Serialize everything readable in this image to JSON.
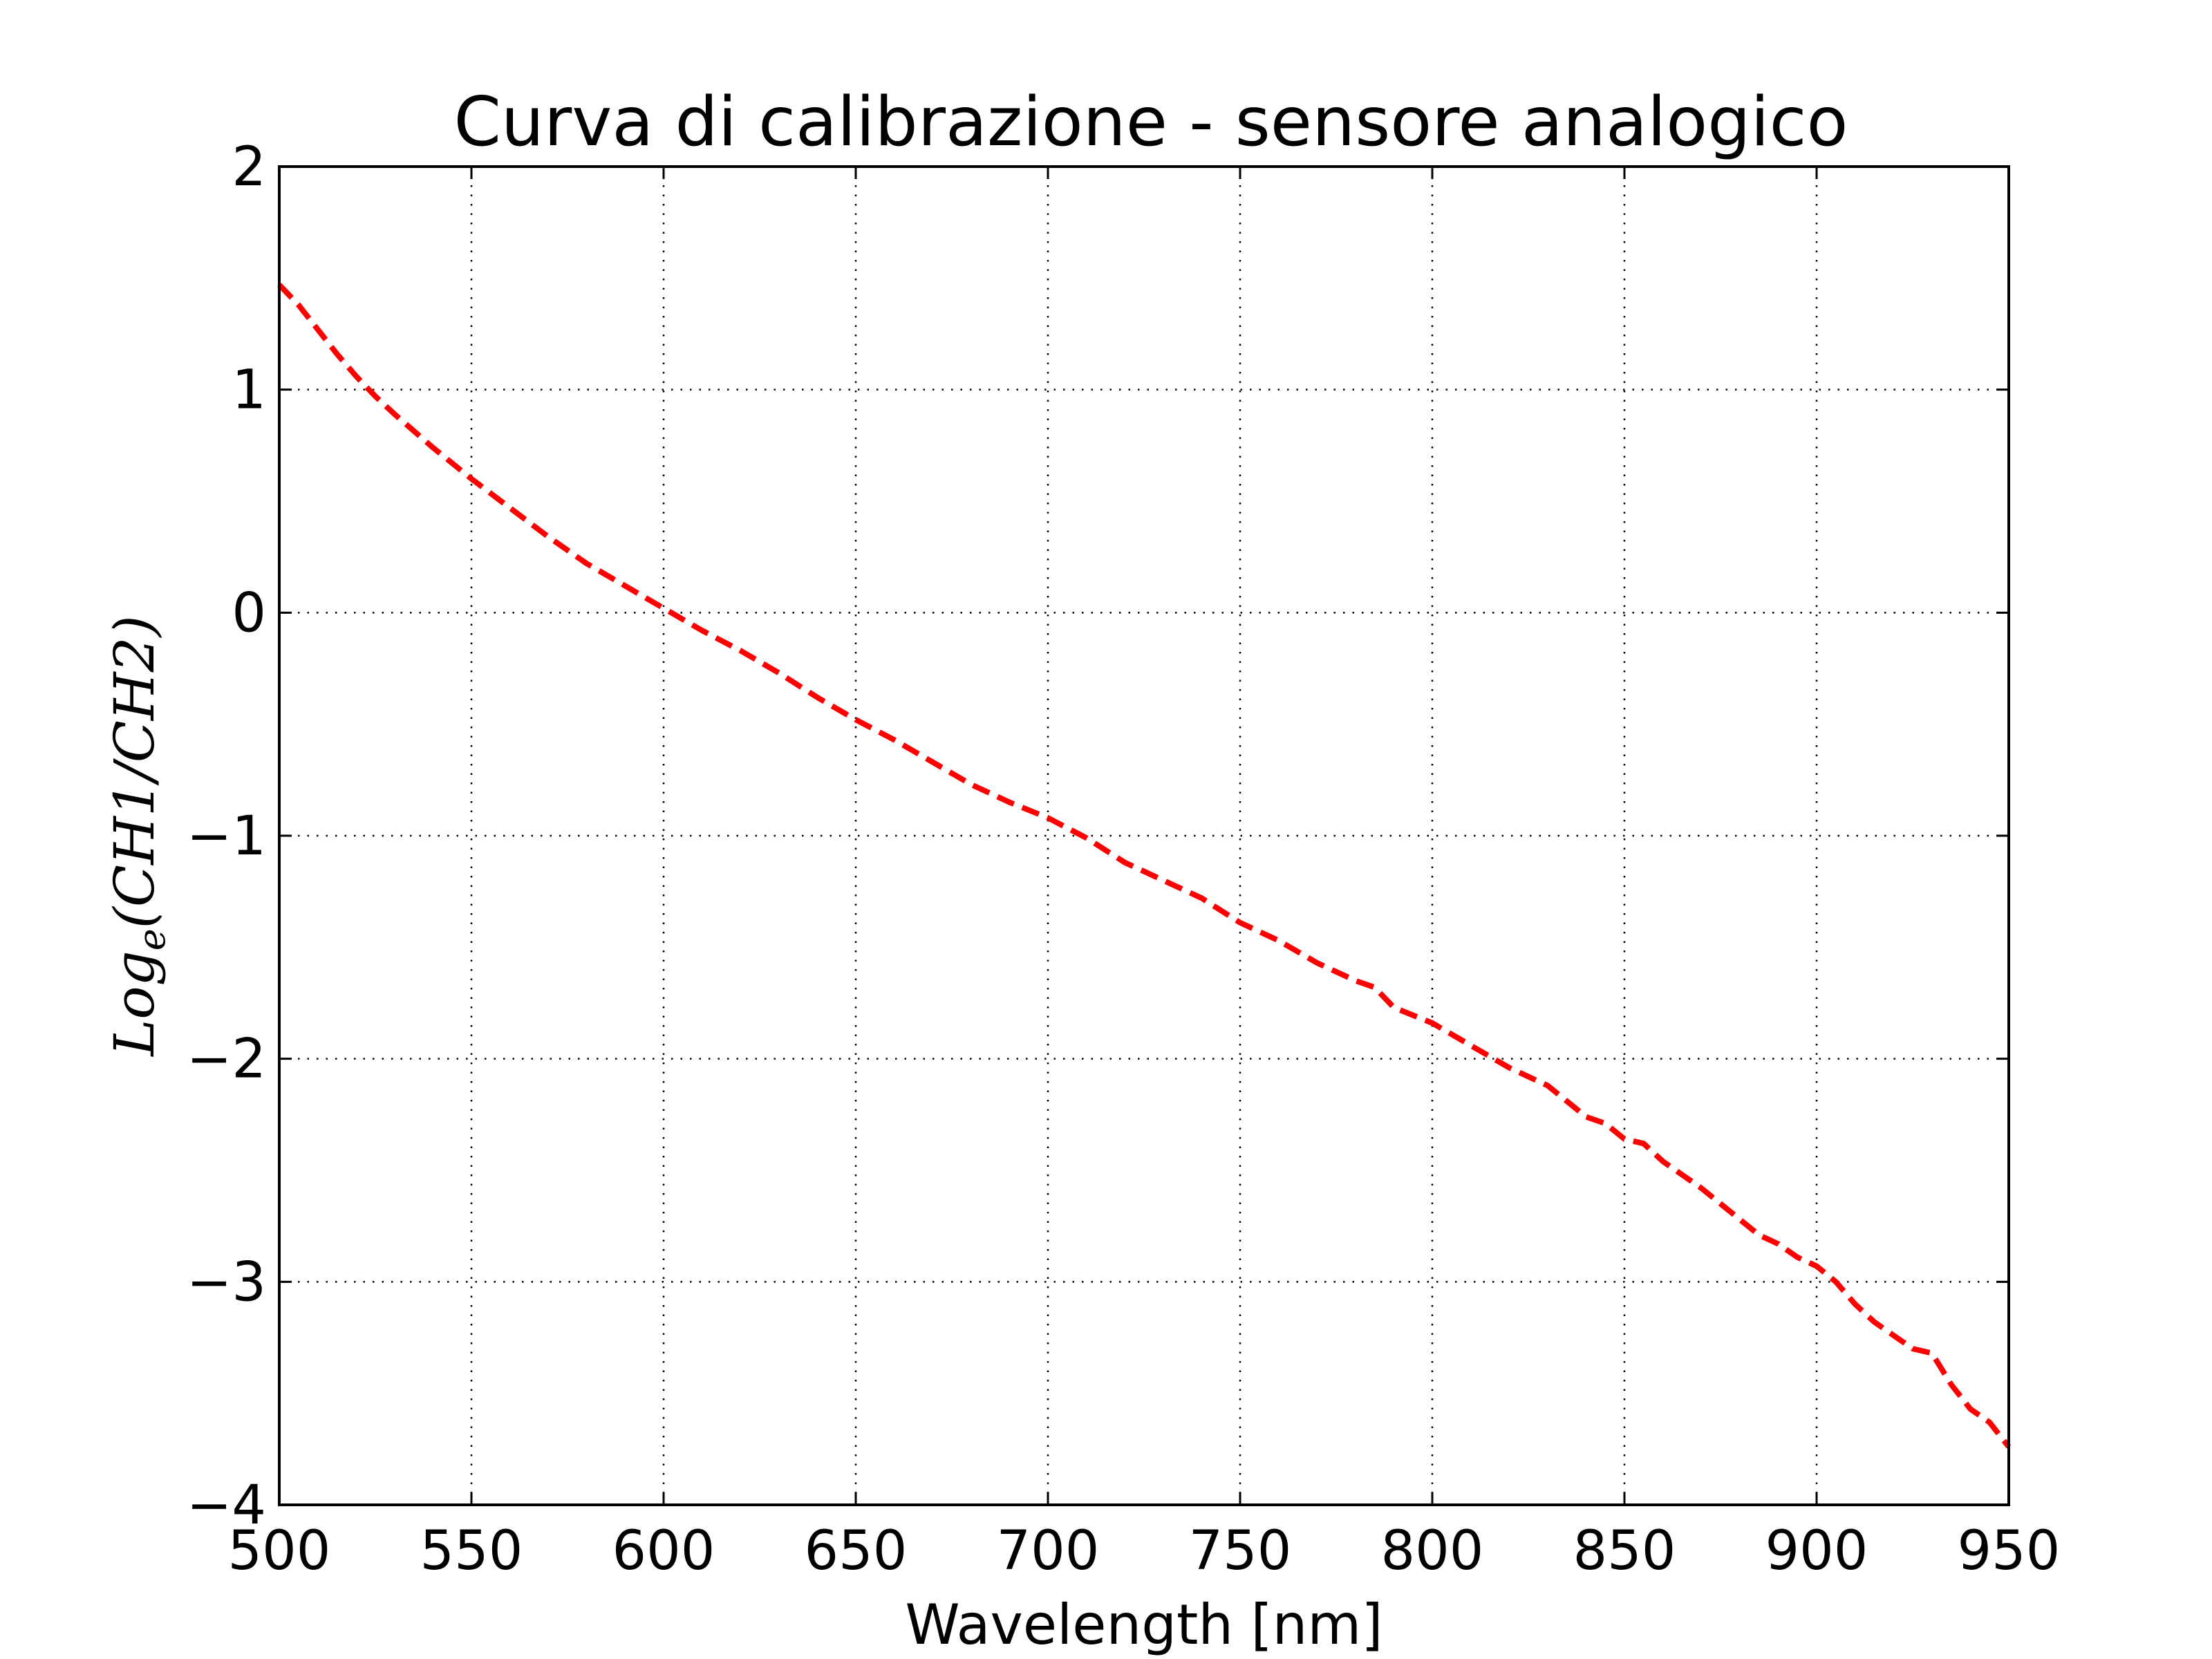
{
  "chart_data": {
    "type": "line",
    "title": "Curva di calibrazione - sensore analogico",
    "xlabel": "Wavelength [nm]",
    "ylabel": {
      "base": "Log",
      "subscript": "e",
      "rest": "(CH1/CH2)"
    },
    "xlim": [
      500,
      950
    ],
    "ylim": [
      -4,
      2
    ],
    "xticks": [
      500,
      550,
      600,
      650,
      700,
      750,
      800,
      850,
      900,
      950
    ],
    "yticks": [
      2,
      1,
      0,
      -1,
      -2,
      -3,
      -4
    ],
    "ytick_labels": [
      "2",
      "1",
      "0",
      "−1",
      "−2",
      "−3",
      "−4"
    ],
    "grid": true,
    "grid_style": "dotted",
    "series": [
      {
        "line_style": "dashed",
        "color": "#ff0000",
        "x": [
          500,
          505,
          510,
          515,
          520,
          525,
          530,
          540,
          550,
          560,
          570,
          580,
          590,
          600,
          610,
          620,
          630,
          640,
          650,
          660,
          670,
          680,
          690,
          700,
          710,
          720,
          730,
          740,
          750,
          760,
          770,
          780,
          785,
          790,
          800,
          810,
          820,
          830,
          840,
          845,
          850,
          855,
          860,
          870,
          880,
          885,
          890,
          895,
          900,
          905,
          910,
          915,
          920,
          925,
          930,
          935,
          940,
          945,
          950
        ],
        "y": [
          1.47,
          1.38,
          1.27,
          1.16,
          1.06,
          0.97,
          0.89,
          0.74,
          0.6,
          0.47,
          0.34,
          0.22,
          0.12,
          0.02,
          -0.08,
          -0.17,
          -0.27,
          -0.38,
          -0.48,
          -0.57,
          -0.67,
          -0.77,
          -0.85,
          -0.92,
          -1.01,
          -1.12,
          -1.2,
          -1.28,
          -1.39,
          -1.47,
          -1.57,
          -1.65,
          -1.68,
          -1.77,
          -1.84,
          -1.94,
          -2.04,
          -2.12,
          -2.26,
          -2.29,
          -2.36,
          -2.38,
          -2.46,
          -2.58,
          -2.72,
          -2.79,
          -2.83,
          -2.89,
          -2.93,
          -3.0,
          -3.1,
          -3.18,
          -3.24,
          -3.3,
          -3.32,
          -3.46,
          -3.57,
          -3.63,
          -3.74
        ]
      }
    ]
  }
}
